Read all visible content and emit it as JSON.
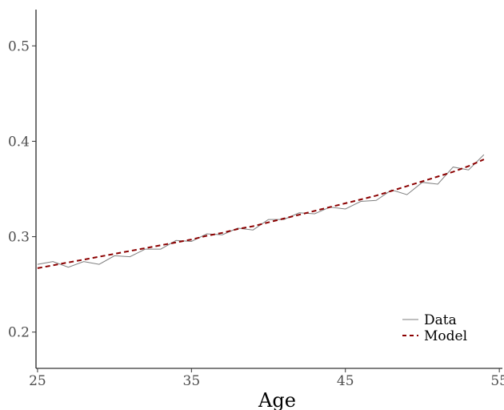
{
  "chart_data": {
    "type": "line",
    "title": "",
    "xlabel": "Age",
    "ylabel": "",
    "xlim": [
      24.9,
      55.2
    ],
    "ylim": [
      0.162,
      0.538
    ],
    "x_ticks": [
      25,
      35,
      45,
      55
    ],
    "y_ticks": [
      0.2,
      0.3,
      0.4,
      0.5
    ],
    "grid": false,
    "legend_position": "bottom-right",
    "x": [
      25,
      26,
      27,
      28,
      29,
      30,
      31,
      32,
      33,
      34,
      35,
      36,
      37,
      38,
      39,
      40,
      41,
      42,
      43,
      44,
      45,
      46,
      47,
      48,
      49,
      50,
      51,
      52,
      53,
      54
    ],
    "series": [
      {
        "name": "Data",
        "color": "#7f7f7f",
        "style": "solid",
        "values": [
          0.271,
          0.274,
          0.268,
          0.274,
          0.271,
          0.28,
          0.279,
          0.287,
          0.287,
          0.296,
          0.295,
          0.303,
          0.302,
          0.309,
          0.307,
          0.318,
          0.318,
          0.325,
          0.324,
          0.331,
          0.329,
          0.337,
          0.338,
          0.349,
          0.344,
          0.357,
          0.355,
          0.373,
          0.37,
          0.386
        ]
      },
      {
        "name": "Model",
        "color": "#8b0000",
        "style": "dashed",
        "values": [
          0.267,
          0.27,
          0.273,
          0.276,
          0.279,
          0.282,
          0.285,
          0.288,
          0.291,
          0.294,
          0.297,
          0.301,
          0.304,
          0.308,
          0.311,
          0.315,
          0.319,
          0.323,
          0.327,
          0.331,
          0.335,
          0.339,
          0.343,
          0.348,
          0.353,
          0.358,
          0.363,
          0.368,
          0.374,
          0.381
        ]
      }
    ]
  }
}
